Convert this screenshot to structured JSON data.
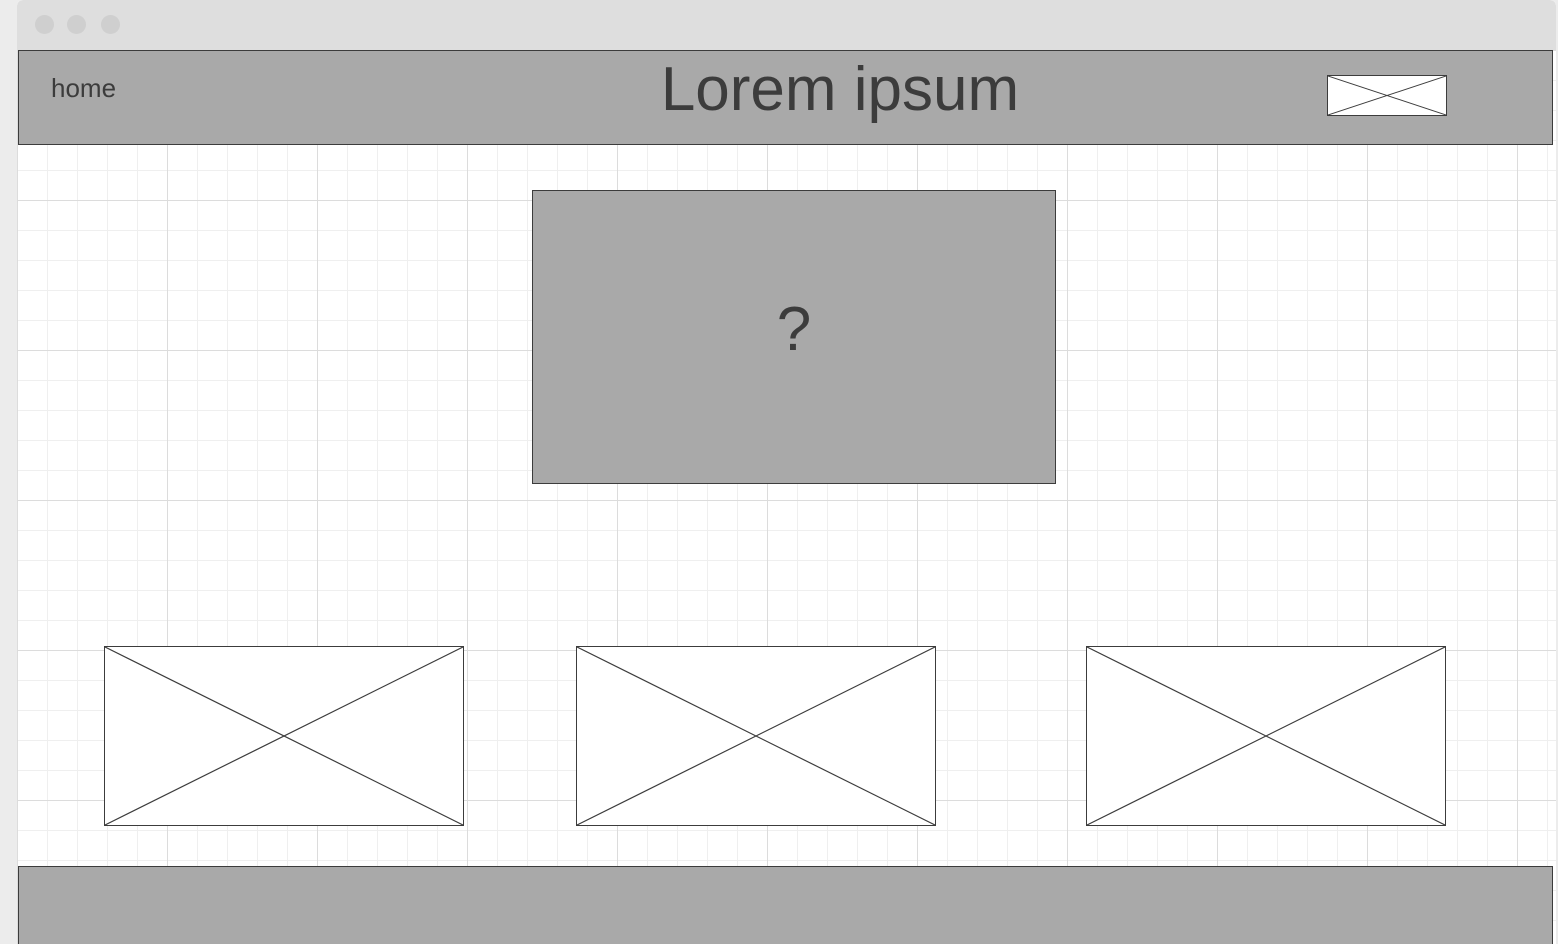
{
  "header": {
    "nav_home": "home",
    "title": "Lorem ipsum",
    "image_icon": "image-placeholder-icon"
  },
  "hero": {
    "text": "?"
  },
  "thumbnails": [
    {
      "icon": "image-placeholder-icon"
    },
    {
      "icon": "image-placeholder-icon"
    },
    {
      "icon": "image-placeholder-icon"
    }
  ],
  "colors": {
    "panel_fill": "#a9a9a9",
    "outline": "#3c3c3c",
    "titlebar": "#dedede"
  }
}
